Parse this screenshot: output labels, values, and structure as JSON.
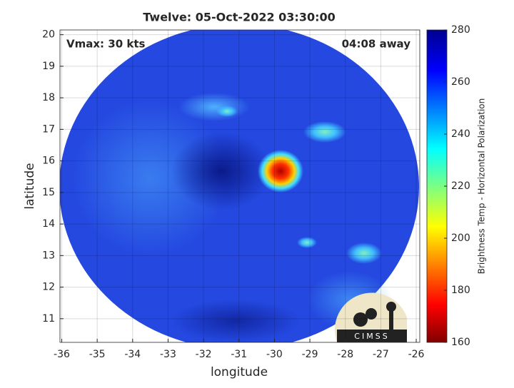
{
  "chart_data": {
    "type": "image",
    "title": "Twelve: 05-Oct-2022 03:30:00",
    "x_label": "longitude",
    "y_label": "latitude",
    "annotations": [
      "Vmax: 30 kts",
      "04:08 away"
    ],
    "xlim": [
      -36.05,
      -25.9
    ],
    "xticks": [
      -36,
      -35,
      -34,
      -33,
      -32,
      -31,
      -30,
      -29,
      -28,
      -27,
      -26
    ],
    "ylim": [
      10.25,
      20.15
    ],
    "yticks": [
      11,
      12,
      13,
      14,
      15,
      16,
      17,
      18,
      19,
      20
    ],
    "grid": true,
    "colorbar": {
      "label": "Brightness Temp - Horizontal Polarization",
      "lim": [
        160,
        280
      ],
      "ticks": [
        160,
        180,
        200,
        220,
        240,
        260,
        280
      ]
    },
    "logo": "CIMSS"
  }
}
